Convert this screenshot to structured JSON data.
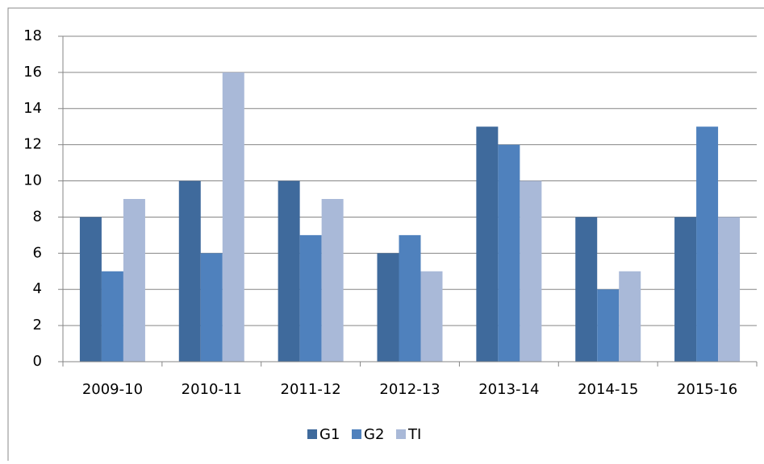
{
  "chart_data": {
    "type": "bar",
    "categories": [
      "2009-10",
      "2010-11",
      "2011-12",
      "2012-13",
      "2013-14",
      "2014-15",
      "2015-16"
    ],
    "series": [
      {
        "name": "G1",
        "color": "#3f6a9c",
        "values": [
          8,
          10,
          10,
          6,
          13,
          8,
          8
        ]
      },
      {
        "name": "G2",
        "color": "#4f81bd",
        "values": [
          5,
          6,
          7,
          7,
          12,
          4,
          13
        ]
      },
      {
        "name": "TI",
        "color": "#a9b9d8",
        "values": [
          9,
          16,
          9,
          5,
          10,
          5,
          8
        ]
      }
    ],
    "ylim": [
      0,
      18
    ],
    "yticks": [
      0,
      2,
      4,
      6,
      8,
      10,
      12,
      14,
      16,
      18
    ],
    "grid": true,
    "legend": "bottom"
  }
}
